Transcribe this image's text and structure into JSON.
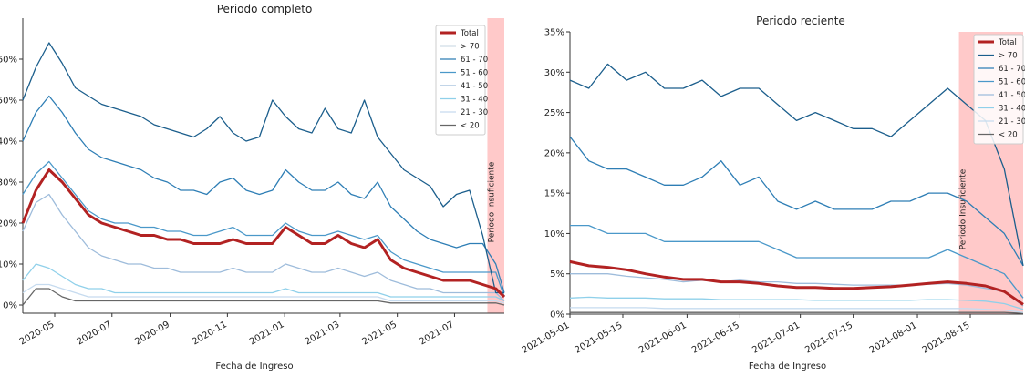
{
  "chart_data": [
    {
      "type": "line",
      "title": "Periodo completo",
      "x_label": "Fecha de Ingreso",
      "x": [
        "2020-03-28",
        "2020-04-11",
        "2020-04-25",
        "2020-05-09",
        "2020-05-23",
        "2020-06-06",
        "2020-06-20",
        "2020-07-04",
        "2020-07-18",
        "2020-08-01",
        "2020-08-15",
        "2020-08-29",
        "2020-09-12",
        "2020-09-26",
        "2020-10-10",
        "2020-10-24",
        "2020-11-07",
        "2020-11-21",
        "2020-12-05",
        "2020-12-19",
        "2021-01-02",
        "2021-01-16",
        "2021-01-30",
        "2021-02-13",
        "2021-02-27",
        "2021-03-13",
        "2021-03-27",
        "2021-04-10",
        "2021-04-24",
        "2021-05-08",
        "2021-05-22",
        "2021-06-05",
        "2021-06-19",
        "2021-07-03",
        "2021-07-17",
        "2021-07-31",
        "2021-08-14",
        "2021-08-23"
      ],
      "xlim": [
        "2020-03-28",
        "2021-08-23"
      ],
      "xticks": [
        "2020-05",
        "2020-07",
        "2020-09",
        "2020-11",
        "2021-01",
        "2021-03",
        "2021-05",
        "2021-07"
      ],
      "ylim": [
        -2,
        70
      ],
      "yticks": [
        {
          "value": 0,
          "label": "0%"
        },
        {
          "value": 10,
          "label": "10%"
        },
        {
          "value": 20,
          "label": "20%"
        },
        {
          "value": 30,
          "label": "30%"
        },
        {
          "value": 40,
          "label": "40%"
        },
        {
          "value": 50,
          "label": "50%"
        },
        {
          "value": 60,
          "label": "60%"
        }
      ],
      "legend": "upper right",
      "shaded_region": {
        "from": "2021-08-05",
        "label": "Periodo Insuficiente",
        "color": "#ffc9c9"
      },
      "series": [
        {
          "name": "Total",
          "color": "#b22222",
          "values": [
            20,
            28,
            33,
            30,
            26,
            22,
            20,
            19,
            18,
            17,
            17,
            16,
            16,
            15,
            15,
            15,
            16,
            15,
            15,
            15,
            19,
            17,
            15,
            15,
            17,
            15,
            14,
            16,
            11,
            9,
            8,
            7,
            6,
            6,
            6,
            5,
            4,
            2
          ]
        },
        {
          "name": "> 70",
          "color": "#1b5e8c",
          "values": [
            50,
            58,
            64,
            59,
            53,
            51,
            49,
            48,
            47,
            46,
            44,
            43,
            42,
            41,
            43,
            46,
            42,
            40,
            41,
            50,
            46,
            43,
            42,
            48,
            43,
            42,
            50,
            41,
            37,
            33,
            31,
            29,
            24,
            27,
            28,
            17,
            3,
            3
          ]
        },
        {
          "name": "61 - 70",
          "color": "#2e7eb5",
          "values": [
            40,
            47,
            51,
            47,
            42,
            38,
            36,
            35,
            34,
            33,
            31,
            30,
            28,
            28,
            27,
            30,
            31,
            28,
            27,
            28,
            33,
            30,
            28,
            28,
            30,
            27,
            26,
            30,
            24,
            21,
            18,
            16,
            15,
            14,
            15,
            15,
            10,
            3
          ]
        },
        {
          "name": "51 - 60",
          "color": "#4a98c9",
          "values": [
            27,
            32,
            35,
            31,
            27,
            23,
            21,
            20,
            20,
            19,
            19,
            18,
            18,
            17,
            17,
            18,
            19,
            17,
            17,
            17,
            20,
            18,
            17,
            17,
            18,
            17,
            16,
            17,
            13,
            11,
            10,
            9,
            8,
            8,
            8,
            8,
            8,
            2
          ]
        },
        {
          "name": "41 - 50",
          "color": "#9ebcdb",
          "values": [
            18,
            25,
            27,
            22,
            18,
            14,
            12,
            11,
            10,
            10,
            9,
            9,
            8,
            8,
            8,
            8,
            9,
            8,
            8,
            8,
            10,
            9,
            8,
            8,
            9,
            8,
            7,
            8,
            6,
            5,
            4,
            4,
            3,
            3,
            3,
            3,
            3,
            1
          ]
        },
        {
          "name": "31 - 40",
          "color": "#8fd0ea",
          "values": [
            6,
            10,
            9,
            7,
            5,
            4,
            4,
            3,
            3,
            3,
            3,
            3,
            3,
            3,
            3,
            3,
            3,
            3,
            3,
            3,
            4,
            3,
            3,
            3,
            3,
            3,
            3,
            3,
            2,
            2,
            2,
            2,
            2,
            2,
            2,
            2,
            2,
            1
          ]
        },
        {
          "name": "21 - 30",
          "color": "#c6dbef",
          "values": [
            3,
            5,
            5,
            4,
            3,
            2,
            2,
            2,
            2,
            2,
            2,
            2,
            2,
            2,
            2,
            2,
            2,
            2,
            2,
            2,
            2,
            2,
            2,
            2,
            2,
            2,
            2,
            2,
            1,
            1,
            1,
            1,
            1,
            1,
            1,
            1,
            1,
            0.5
          ]
        },
        {
          "name": "< 20",
          "color": "#666666",
          "values": [
            0,
            4,
            4,
            2,
            1,
            1,
            1,
            1,
            1,
            1,
            1,
            1,
            1,
            1,
            1,
            1,
            1,
            1,
            1,
            1,
            1,
            1,
            1,
            1,
            1,
            1,
            1,
            1,
            0.5,
            0.5,
            0.5,
            0.5,
            0.5,
            0.5,
            0.5,
            0.5,
            0.5,
            0
          ]
        }
      ]
    },
    {
      "type": "line",
      "title": "Periodo reciente",
      "x_label": "Fecha de Ingreso",
      "x": [
        "2021-05-01",
        "2021-05-06",
        "2021-05-11",
        "2021-05-16",
        "2021-05-21",
        "2021-05-26",
        "2021-05-31",
        "2021-06-05",
        "2021-06-10",
        "2021-06-15",
        "2021-06-20",
        "2021-06-25",
        "2021-06-30",
        "2021-07-05",
        "2021-07-10",
        "2021-07-15",
        "2021-07-20",
        "2021-07-25",
        "2021-07-30",
        "2021-08-04",
        "2021-08-09",
        "2021-08-14",
        "2021-08-19",
        "2021-08-24",
        "2021-08-29"
      ],
      "xlim": [
        "2021-05-01",
        "2021-08-29"
      ],
      "xticks": [
        "2021-05-01",
        "2021-05-15",
        "2021-06-01",
        "2021-06-15",
        "2021-07-01",
        "2021-07-15",
        "2021-08-01",
        "2021-08-15"
      ],
      "ylim": [
        0,
        35
      ],
      "yticks": [
        {
          "value": 0,
          "label": "0%"
        },
        {
          "value": 5,
          "label": "5%"
        },
        {
          "value": 10,
          "label": "10%"
        },
        {
          "value": 15,
          "label": "15%"
        },
        {
          "value": 20,
          "label": "20%"
        },
        {
          "value": 25,
          "label": "25%"
        },
        {
          "value": 30,
          "label": "30%"
        },
        {
          "value": 35,
          "label": "35%"
        }
      ],
      "legend": "upper right",
      "shaded_region": {
        "from": "2021-08-12",
        "label": "Periodo Insuficiente",
        "color": "#ffc9c9"
      },
      "series": [
        {
          "name": "Total",
          "color": "#b22222",
          "values": [
            6.5,
            6,
            5.8,
            5.5,
            5,
            4.6,
            4.3,
            4.3,
            4,
            4,
            3.8,
            3.5,
            3.3,
            3.3,
            3.2,
            3.2,
            3.3,
            3.4,
            3.6,
            3.8,
            4,
            3.8,
            3.5,
            2.8,
            1.2
          ]
        },
        {
          "name": "> 70",
          "color": "#1b5e8c",
          "values": [
            29,
            28,
            31,
            29,
            30,
            28,
            28,
            29,
            27,
            28,
            28,
            26,
            24,
            25,
            24,
            23,
            23,
            22,
            24,
            26,
            28,
            26,
            24,
            18,
            6
          ]
        },
        {
          "name": "61 - 70",
          "color": "#2e7eb5",
          "values": [
            22,
            19,
            18,
            18,
            17,
            16,
            16,
            17,
            19,
            16,
            17,
            14,
            13,
            14,
            13,
            13,
            13,
            14,
            14,
            15,
            15,
            14,
            12,
            10,
            6
          ]
        },
        {
          "name": "51 - 60",
          "color": "#4a98c9",
          "values": [
            11,
            11,
            10,
            10,
            10,
            9,
            9,
            9,
            9,
            9,
            9,
            8,
            7,
            7,
            7,
            7,
            7,
            7,
            7,
            7,
            8,
            7,
            6,
            5,
            2
          ]
        },
        {
          "name": "41 - 50",
          "color": "#9ebcdb",
          "values": [
            5,
            5,
            5,
            4.7,
            4.5,
            4.3,
            4,
            4.2,
            4,
            4.2,
            4,
            4,
            3.8,
            3.8,
            3.7,
            3.6,
            3.6,
            3.6,
            3.6,
            3.7,
            3.8,
            3.6,
            3.2,
            2.8,
            1
          ]
        },
        {
          "name": "31 - 40",
          "color": "#8fd0ea",
          "values": [
            2,
            2.1,
            2,
            2,
            2,
            1.9,
            1.9,
            1.9,
            1.8,
            1.8,
            1.8,
            1.8,
            1.8,
            1.7,
            1.7,
            1.7,
            1.7,
            1.7,
            1.7,
            1.8,
            1.8,
            1.7,
            1.6,
            1.3,
            0.6
          ]
        },
        {
          "name": "21 - 30",
          "color": "#c6dbef",
          "values": [
            0.8,
            0.8,
            0.8,
            0.8,
            0.8,
            0.7,
            0.7,
            0.7,
            0.7,
            0.7,
            0.7,
            0.7,
            0.7,
            0.7,
            0.7,
            0.7,
            0.7,
            0.7,
            0.7,
            0.7,
            0.7,
            0.7,
            0.6,
            0.5,
            0.2
          ]
        },
        {
          "name": "< 20",
          "color": "#666666",
          "values": [
            0.2,
            0.2,
            0.2,
            0.2,
            0.2,
            0.2,
            0.2,
            0.2,
            0.2,
            0.2,
            0.2,
            0.2,
            0.2,
            0.2,
            0.2,
            0.2,
            0.2,
            0.2,
            0.2,
            0.2,
            0.2,
            0.2,
            0.2,
            0.2,
            0.1
          ]
        }
      ]
    }
  ]
}
